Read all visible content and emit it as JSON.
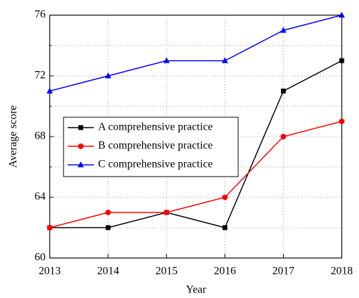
{
  "chart_data": {
    "type": "line",
    "x_label": "Year",
    "y_label": "Average score",
    "x": [
      2013,
      2014,
      2015,
      2016,
      2017,
      2018
    ],
    "xlim": [
      2013,
      2018
    ],
    "xticks": [
      2013,
      2014,
      2015,
      2016,
      2017,
      2018
    ],
    "ylim": [
      60,
      76
    ],
    "yticks": [
      60,
      64,
      68,
      72,
      76
    ],
    "y_minor_ticks": [
      62,
      66,
      70,
      74
    ],
    "grid": true,
    "legend": "center-left",
    "series": [
      {
        "name": "A comprehensive practice",
        "color": "#000000",
        "marker": "square",
        "values": [
          62,
          62,
          63,
          62,
          71,
          73
        ]
      },
      {
        "name": "B comprehensive practice",
        "color": "#ff0000",
        "marker": "circle",
        "values": [
          62,
          63,
          63,
          64,
          68,
          69
        ]
      },
      {
        "name": "C comprehensive practice",
        "color": "#0000ff",
        "marker": "triangle",
        "values": [
          71,
          72,
          73,
          73,
          75,
          76
        ]
      }
    ]
  }
}
